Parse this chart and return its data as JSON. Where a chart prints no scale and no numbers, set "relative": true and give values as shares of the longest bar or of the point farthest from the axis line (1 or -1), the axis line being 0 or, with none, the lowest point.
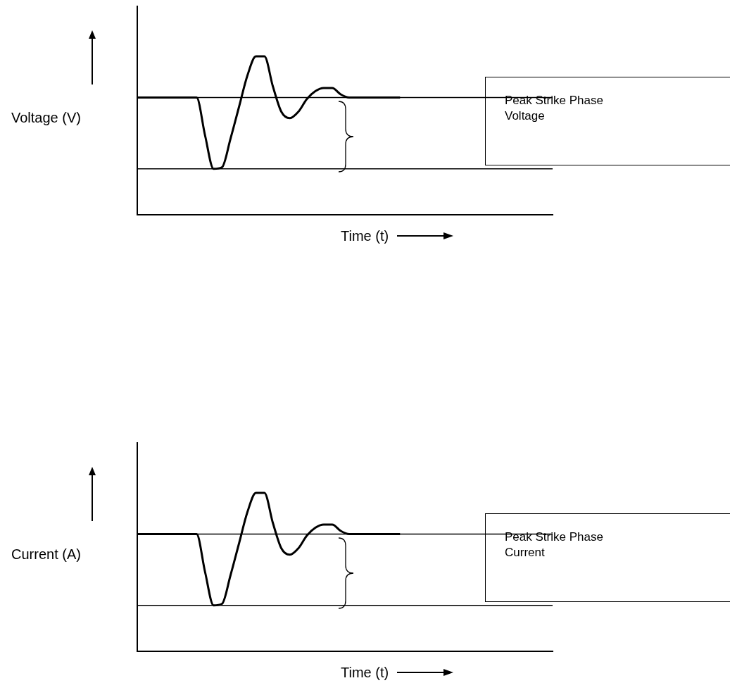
{
  "chart_data": [
    {
      "type": "line",
      "relative": true,
      "ylabel": "Voltage (V)",
      "xlabel": "Time (t)",
      "annotations": [
        "Peak Strike Phase Voltage"
      ],
      "categories": [
        null,
        null,
        null,
        null,
        null,
        null,
        null,
        null,
        null,
        null,
        null,
        null,
        null,
        null,
        null,
        null,
        null,
        null,
        null,
        null,
        null,
        null,
        null,
        null,
        null,
        null,
        null,
        null,
        null,
        null,
        null,
        null,
        null,
        null,
        null,
        null,
        null,
        null,
        null,
        null,
        null,
        null,
        null,
        null,
        null,
        null,
        null,
        null,
        null,
        null
      ],
      "series": [
        {
          "color": "#000000",
          "values": [
            0.74,
            0.74,
            0.74,
            0.74,
            0.74,
            0.74,
            0.74,
            0.74,
            0.5,
            0.29,
            0.3,
            0.48,
            0.68,
            0.88,
            1,
            1,
            0.81,
            0.65,
            0.61,
            0.65,
            0.73,
            0.78,
            0.8,
            0.8,
            0.76,
            0.74,
            0.74,
            0.74,
            0.74,
            0.74,
            0.74,
            0.74,
            null,
            null,
            null,
            null,
            null,
            null,
            null,
            null,
            null,
            null,
            null,
            null,
            null,
            null,
            null,
            null,
            null,
            null
          ]
        }
      ],
      "ref_lines": [
        {
          "axis": "y",
          "value": 0.74
        },
        {
          "axis": "y",
          "value": 0.29
        }
      ]
    },
    {
      "type": "line",
      "relative": true,
      "ylabel": "Current (A)",
      "xlabel": "Time (t)",
      "annotations": [
        "Peak Strike Phase Current"
      ],
      "categories": [
        null,
        null,
        null,
        null,
        null,
        null,
        null,
        null,
        null,
        null,
        null,
        null,
        null,
        null,
        null,
        null,
        null,
        null,
        null,
        null,
        null,
        null,
        null,
        null,
        null,
        null,
        null,
        null,
        null,
        null,
        null,
        null,
        null,
        null,
        null,
        null,
        null,
        null,
        null,
        null,
        null,
        null,
        null,
        null,
        null,
        null,
        null,
        null,
        null,
        null
      ],
      "series": [
        {
          "color": "#000000",
          "values": [
            0.74,
            0.74,
            0.74,
            0.74,
            0.74,
            0.74,
            0.74,
            0.74,
            0.5,
            0.29,
            0.3,
            0.48,
            0.68,
            0.88,
            1,
            1,
            0.81,
            0.65,
            0.61,
            0.65,
            0.73,
            0.78,
            0.8,
            0.8,
            0.76,
            0.74,
            0.74,
            0.74,
            0.74,
            0.74,
            0.74,
            0.74,
            null,
            null,
            null,
            null,
            null,
            null,
            null,
            null,
            null,
            null,
            null,
            null,
            null,
            null,
            null,
            null,
            null,
            null
          ]
        }
      ],
      "ref_lines": [
        {
          "axis": "y",
          "value": 0.74
        },
        {
          "axis": "y",
          "value": 0.29
        }
      ]
    }
  ]
}
